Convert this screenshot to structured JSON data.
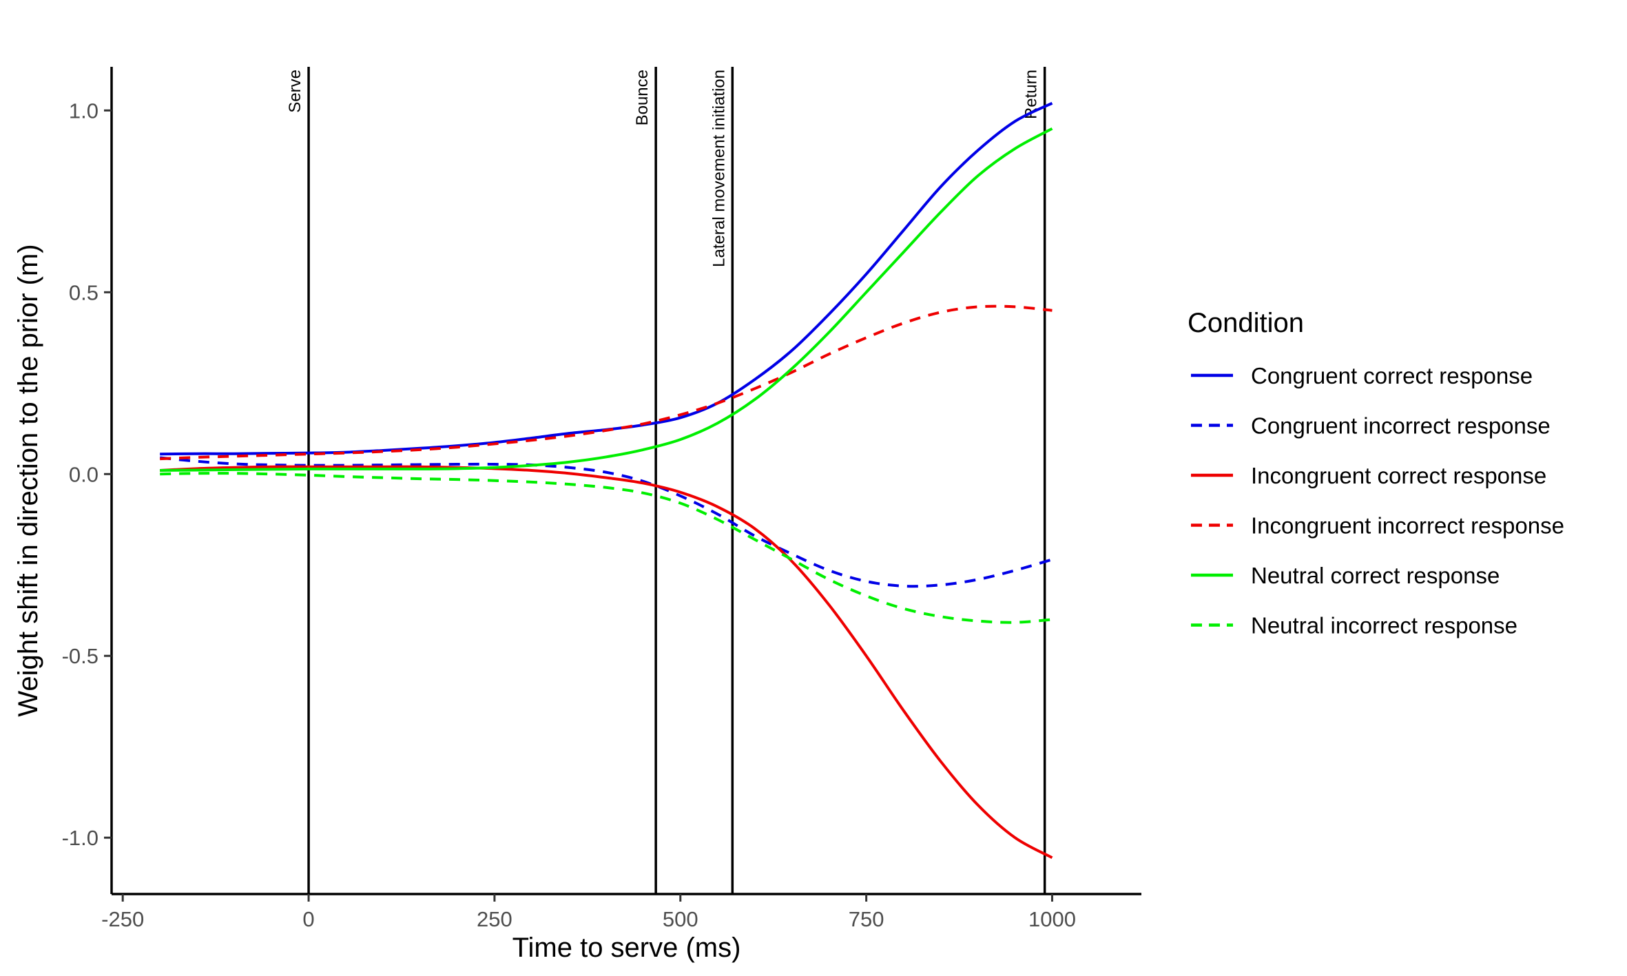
{
  "chart_data": {
    "type": "line",
    "xlabel": "Time to serve (ms)",
    "ylabel": "Weight shift in direction to the prior (m)",
    "xlim": [
      -265,
      1120
    ],
    "ylim": [
      -1.155,
      1.12
    ],
    "x_ticks": [
      -250,
      0,
      250,
      500,
      750,
      1000
    ],
    "x_tick_labels": [
      "-250",
      "0",
      "250",
      "500",
      "750",
      "1000"
    ],
    "y_ticks": [
      1.0,
      0.5,
      0.0,
      -0.5,
      -1.0
    ],
    "y_tick_labels": [
      "1.0",
      "0.5",
      "0.0",
      "-0.5",
      "-1.0"
    ],
    "grid": false,
    "legend": {
      "title": "Condition",
      "placement": "right"
    },
    "vlines": [
      {
        "x": 0,
        "label": "Serve"
      },
      {
        "x": 467,
        "label": "Bounce"
      },
      {
        "x": 570,
        "label": "Lateral movement initiation"
      },
      {
        "x": 990,
        "label": "Return"
      }
    ],
    "x": [
      -200,
      -150,
      -100,
      -50,
      0,
      50,
      100,
      150,
      200,
      250,
      300,
      350,
      400,
      450,
      500,
      550,
      600,
      650,
      700,
      750,
      800,
      850,
      900,
      950,
      1000
    ],
    "series": [
      {
        "name": "Congruent correct response",
        "color": "#0000e6",
        "dash": "solid",
        "values": [
          0.055,
          0.056,
          0.056,
          0.057,
          0.058,
          0.06,
          0.065,
          0.071,
          0.078,
          0.087,
          0.099,
          0.112,
          0.122,
          0.135,
          0.155,
          0.195,
          0.26,
          0.34,
          0.44,
          0.55,
          0.67,
          0.79,
          0.89,
          0.97,
          1.02
        ]
      },
      {
        "name": "Congruent incorrect response",
        "color": "#0000e6",
        "dash": "dashed",
        "values": [
          0.045,
          0.035,
          0.028,
          0.025,
          0.024,
          0.024,
          0.025,
          0.026,
          0.027,
          0.027,
          0.025,
          0.018,
          0.005,
          -0.02,
          -0.06,
          -0.11,
          -0.17,
          -0.22,
          -0.265,
          -0.295,
          -0.308,
          -0.305,
          -0.29,
          -0.265,
          -0.235
        ]
      },
      {
        "name": "Incongruent correct response",
        "color": "#ee0000",
        "dash": "solid",
        "values": [
          0.01,
          0.015,
          0.018,
          0.02,
          0.02,
          0.02,
          0.02,
          0.02,
          0.018,
          0.015,
          0.01,
          0.002,
          -0.01,
          -0.025,
          -0.05,
          -0.09,
          -0.15,
          -0.24,
          -0.36,
          -0.5,
          -0.65,
          -0.79,
          -0.91,
          -1.0,
          -1.055
        ]
      },
      {
        "name": "Incongruent incorrect response",
        "color": "#ee0000",
        "dash": "dashed",
        "values": [
          0.042,
          0.046,
          0.049,
          0.052,
          0.055,
          0.058,
          0.062,
          0.067,
          0.074,
          0.083,
          0.093,
          0.105,
          0.12,
          0.138,
          0.163,
          0.195,
          0.235,
          0.28,
          0.33,
          0.375,
          0.415,
          0.445,
          0.46,
          0.46,
          0.45
        ]
      },
      {
        "name": "Neutral correct response",
        "color": "#00ee00",
        "dash": "solid",
        "values": [
          0.01,
          0.011,
          0.012,
          0.013,
          0.014,
          0.014,
          0.014,
          0.014,
          0.015,
          0.018,
          0.024,
          0.033,
          0.047,
          0.067,
          0.095,
          0.14,
          0.205,
          0.29,
          0.39,
          0.5,
          0.61,
          0.72,
          0.82,
          0.895,
          0.95
        ]
      },
      {
        "name": "Neutral incorrect response",
        "color": "#00ee00",
        "dash": "dashed",
        "values": [
          0.0,
          0.002,
          0.002,
          0.0,
          -0.003,
          -0.007,
          -0.01,
          -0.013,
          -0.015,
          -0.018,
          -0.022,
          -0.028,
          -0.037,
          -0.052,
          -0.08,
          -0.125,
          -0.18,
          -0.235,
          -0.29,
          -0.335,
          -0.37,
          -0.392,
          -0.404,
          -0.408,
          -0.4
        ]
      }
    ]
  }
}
